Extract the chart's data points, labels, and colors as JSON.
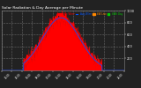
{
  "title": "Solar Radiation & Day Average per Minute",
  "bg_color": "#222222",
  "plot_bg_color": "#222222",
  "grid_color": "#ffffff",
  "area_color": "#ff0000",
  "line_color": "#0055ff",
  "legend_labels": [
    "Live W/m²",
    "Avg W/m²",
    "kW Live",
    "kWh Day"
  ],
  "legend_colors": [
    "#ff0000",
    "#0055ff",
    "#ff8800",
    "#00cc00"
  ],
  "ylim": [
    0,
    1000
  ],
  "xlim": [
    0,
    1440
  ],
  "ytick_values": [
    200,
    400,
    600,
    800,
    1000
  ],
  "peak_value": 880,
  "peak_x": 700,
  "sigma": 220,
  "start_x": 260,
  "end_x": 1180,
  "noise_seed": 7,
  "noise_scale": 55
}
